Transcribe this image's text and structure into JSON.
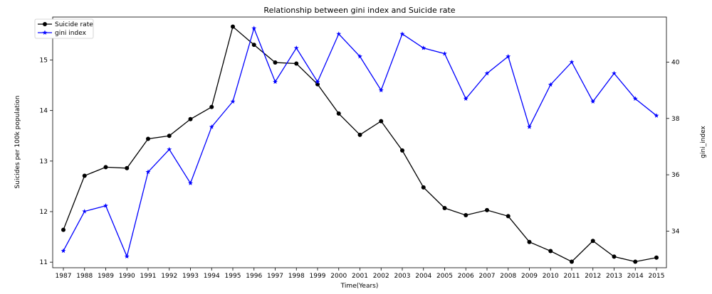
{
  "chart_data": {
    "type": "line",
    "title": "Relationship between gini index and Suicide rate",
    "xlabel": "Time(Years)",
    "ylabel_left": "Suicides per 100k population",
    "ylabel_right": "gini_index",
    "x": [
      "1987",
      "1988",
      "1989",
      "1990",
      "1991",
      "1992",
      "1993",
      "1994",
      "1995",
      "1996",
      "1997",
      "1998",
      "1999",
      "2000",
      "2001",
      "2002",
      "2003",
      "2004",
      "2005",
      "2006",
      "2007",
      "2008",
      "2009",
      "2010",
      "2011",
      "2012",
      "2013",
      "2014",
      "2015"
    ],
    "ylim_left": [
      10.89,
      15.85
    ],
    "ylim_right": [
      32.7,
      41.6
    ],
    "yticks_left": [
      "11",
      "12",
      "13",
      "14",
      "15"
    ],
    "yticks_right": [
      "34",
      "36",
      "38",
      "40"
    ],
    "grid": false,
    "legend_position": "top-left",
    "series": [
      {
        "name": "Suicide rate",
        "axis": "left",
        "color": "#000000",
        "marker": "circle",
        "values": [
          11.64,
          12.71,
          12.88,
          12.86,
          13.44,
          13.5,
          13.83,
          14.07,
          15.66,
          15.3,
          14.95,
          14.93,
          14.52,
          13.94,
          13.52,
          13.79,
          13.21,
          12.48,
          12.07,
          11.93,
          12.03,
          11.91,
          11.4,
          11.22,
          11.01,
          11.42,
          11.11,
          11.01,
          11.09
        ]
      },
      {
        "name": "gini index",
        "axis": "right",
        "color": "#0000ff",
        "marker": "star",
        "values": [
          33.3,
          34.7,
          34.9,
          33.1,
          36.1,
          36.9,
          35.7,
          37.7,
          38.6,
          41.2,
          39.3,
          40.5,
          39.3,
          41.0,
          40.2,
          39.0,
          41.0,
          40.5,
          40.3,
          38.7,
          39.6,
          40.2,
          37.7,
          39.2,
          40.0,
          38.6,
          39.6,
          38.7,
          38.1
        ]
      }
    ]
  }
}
